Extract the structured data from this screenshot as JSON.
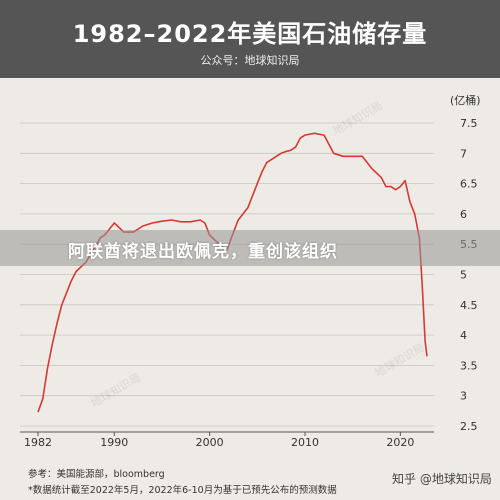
{
  "header": {
    "title": "1982–2022年美国石油储存量",
    "subtitle": "公众号：地球知识局"
  },
  "unit_label": "(亿桶)",
  "overlay_text": "阿联酋将退出欧佩克，重创该组织",
  "watermarks": [
    "地球知识局",
    "地球知识局",
    "地球知识局"
  ],
  "footer": {
    "line1": "参考：美国能源部，bloomberg",
    "line2": "*数据统计截至2022年5月，2022年6-10月为基于已预先公布的预测数据"
  },
  "brand": "知乎 @地球知识局",
  "colors": {
    "line": "#d43a33",
    "header_bg": "#555555",
    "bg": "#eeeae5"
  },
  "chart_data": {
    "type": "line",
    "title": "1982–2022年美国石油储存量",
    "ylabel": "(亿桶)",
    "xlim": [
      1982,
      2022.9
    ],
    "ylim": [
      2.5,
      7.5
    ],
    "x_ticks": [
      1982,
      1990,
      2000,
      2010,
      2020
    ],
    "y_ticks": [
      2.5,
      3,
      3.5,
      4,
      4.5,
      5,
      5.5,
      6,
      6.5,
      7,
      7.5
    ],
    "grid": "horizontal",
    "series": [
      {
        "name": "",
        "x": [
          1982.0,
          1982.5,
          1983.0,
          1983.5,
          1984.0,
          1984.5,
          1985.0,
          1985.5,
          1986.0,
          1987.0,
          1988.0,
          1988.5,
          1989.0,
          1989.5,
          1990.0,
          1991.0,
          1992.0,
          1993.0,
          1994.0,
          1995.0,
          1996.0,
          1997.0,
          1998.0,
          1999.0,
          1999.5,
          2000.0,
          2001.0,
          2001.8,
          2002.5,
          2003.0,
          2004.0,
          2005.0,
          2005.5,
          2006.0,
          2006.5,
          2007.0,
          2007.5,
          2008.0,
          2008.5,
          2009.0,
          2009.5,
          2010.0,
          2011.0,
          2012.0,
          2013.0,
          2014.0,
          2015.0,
          2016.0,
          2017.0,
          2018.0,
          2018.5,
          2019.0,
          2019.5,
          2020.0,
          2020.5,
          2021.0,
          2021.5,
          2022.0,
          2022.3,
          2022.6,
          2022.8
        ],
        "values": [
          2.73,
          2.95,
          3.45,
          3.85,
          4.2,
          4.5,
          4.7,
          4.9,
          5.05,
          5.2,
          5.45,
          5.6,
          5.65,
          5.75,
          5.85,
          5.7,
          5.7,
          5.8,
          5.85,
          5.88,
          5.9,
          5.87,
          5.87,
          5.9,
          5.85,
          5.65,
          5.5,
          5.4,
          5.7,
          5.9,
          6.1,
          6.5,
          6.7,
          6.85,
          6.9,
          6.95,
          7.0,
          7.03,
          7.05,
          7.1,
          7.25,
          7.3,
          7.33,
          7.3,
          7.0,
          6.95,
          6.95,
          6.95,
          6.75,
          6.6,
          6.45,
          6.45,
          6.4,
          6.45,
          6.55,
          6.2,
          6.0,
          5.6,
          4.8,
          3.9,
          3.65
        ]
      }
    ]
  }
}
